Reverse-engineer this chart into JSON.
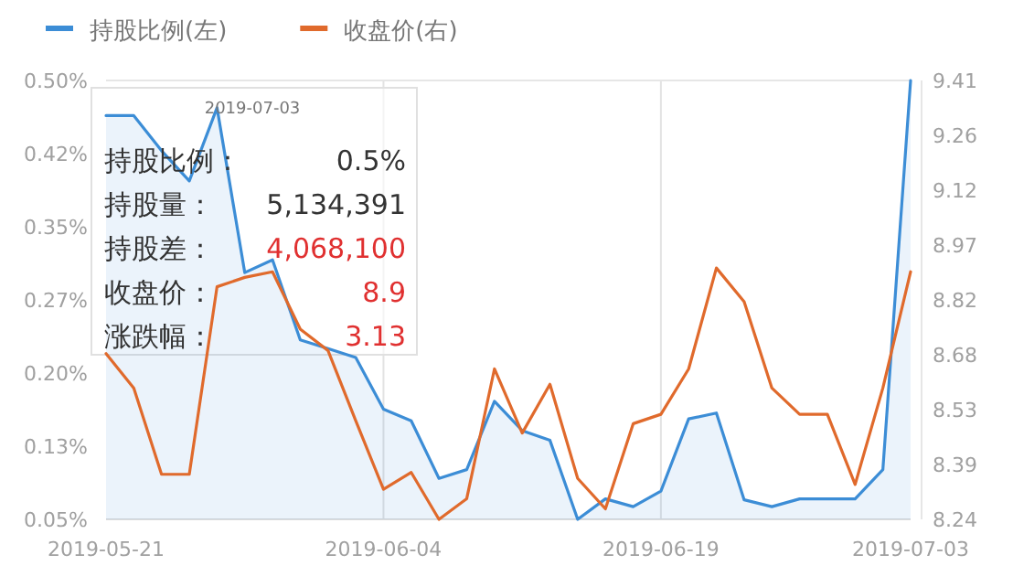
{
  "chart_data": {
    "type": "line",
    "categories": [
      "2019-05-21",
      null,
      null,
      null,
      null,
      null,
      null,
      null,
      null,
      null,
      "2019-06-04",
      null,
      null,
      null,
      null,
      null,
      null,
      null,
      null,
      null,
      "2019-06-19",
      null,
      null,
      null,
      null,
      null,
      null,
      null,
      null,
      "2019-07-03"
    ],
    "series": [
      {
        "name": "持股比例(左)",
        "type": "area",
        "color": "#3c8dd6",
        "values": [
          0.464,
          0.464,
          0.428,
          0.397,
          0.472,
          0.303,
          0.316,
          0.234,
          0.225,
          0.216,
          0.163,
          0.151,
          0.092,
          0.101,
          0.171,
          0.141,
          0.131,
          0.05,
          0.071,
          0.063,
          0.079,
          0.153,
          0.159,
          0.07,
          0.063,
          0.071,
          0.071,
          0.071,
          0.101,
          0.5
        ]
      },
      {
        "name": "收盘价(右)",
        "type": "line",
        "axis": "y2",
        "color": "#e06a2c",
        "values": [
          8.682,
          8.59,
          8.36,
          8.36,
          8.86,
          8.885,
          8.9,
          8.747,
          8.69,
          8.503,
          8.32,
          8.365,
          8.24,
          8.295,
          8.641,
          8.47,
          8.6,
          8.349,
          8.268,
          8.495,
          8.52,
          8.641,
          8.91,
          8.82,
          8.59,
          8.52,
          8.52,
          8.333,
          8.59,
          8.9
        ]
      }
    ],
    "ylim": [
      0.05,
      0.5
    ],
    "yticks": [
      {
        "value": 0.05,
        "label": "0.05%"
      },
      {
        "value": 0.125,
        "label": "0.13%"
      },
      {
        "value": 0.2,
        "label": "0.20%"
      },
      {
        "value": 0.275,
        "label": "0.27%"
      },
      {
        "value": 0.35,
        "label": "0.35%"
      },
      {
        "value": 0.425,
        "label": "0.42%"
      },
      {
        "value": 0.5,
        "label": "0.50%"
      }
    ],
    "y2lim": [
      8.24,
      9.41
    ],
    "y2ticks": [
      {
        "value": 8.24,
        "label": "8.24"
      },
      {
        "value": 8.38625,
        "label": "8.39"
      },
      {
        "value": 8.5325,
        "label": "8.53"
      },
      {
        "value": 8.67875,
        "label": "8.68"
      },
      {
        "value": 8.825,
        "label": "8.82"
      },
      {
        "value": 8.97125,
        "label": "8.97"
      },
      {
        "value": 9.1175,
        "label": "9.12"
      },
      {
        "value": 9.26375,
        "label": "9.26"
      },
      {
        "value": 9.41,
        "label": "9.41"
      }
    ],
    "grid": "x",
    "legend": "top left",
    "annotations": [
      "2019-07-03",
      "持股比例：",
      "0.5%",
      "持股量：",
      "5,134,391",
      "持股差：",
      "4,068,100",
      "收盘价：",
      "8.9",
      "涨跌幅：",
      "3.13"
    ]
  }
}
